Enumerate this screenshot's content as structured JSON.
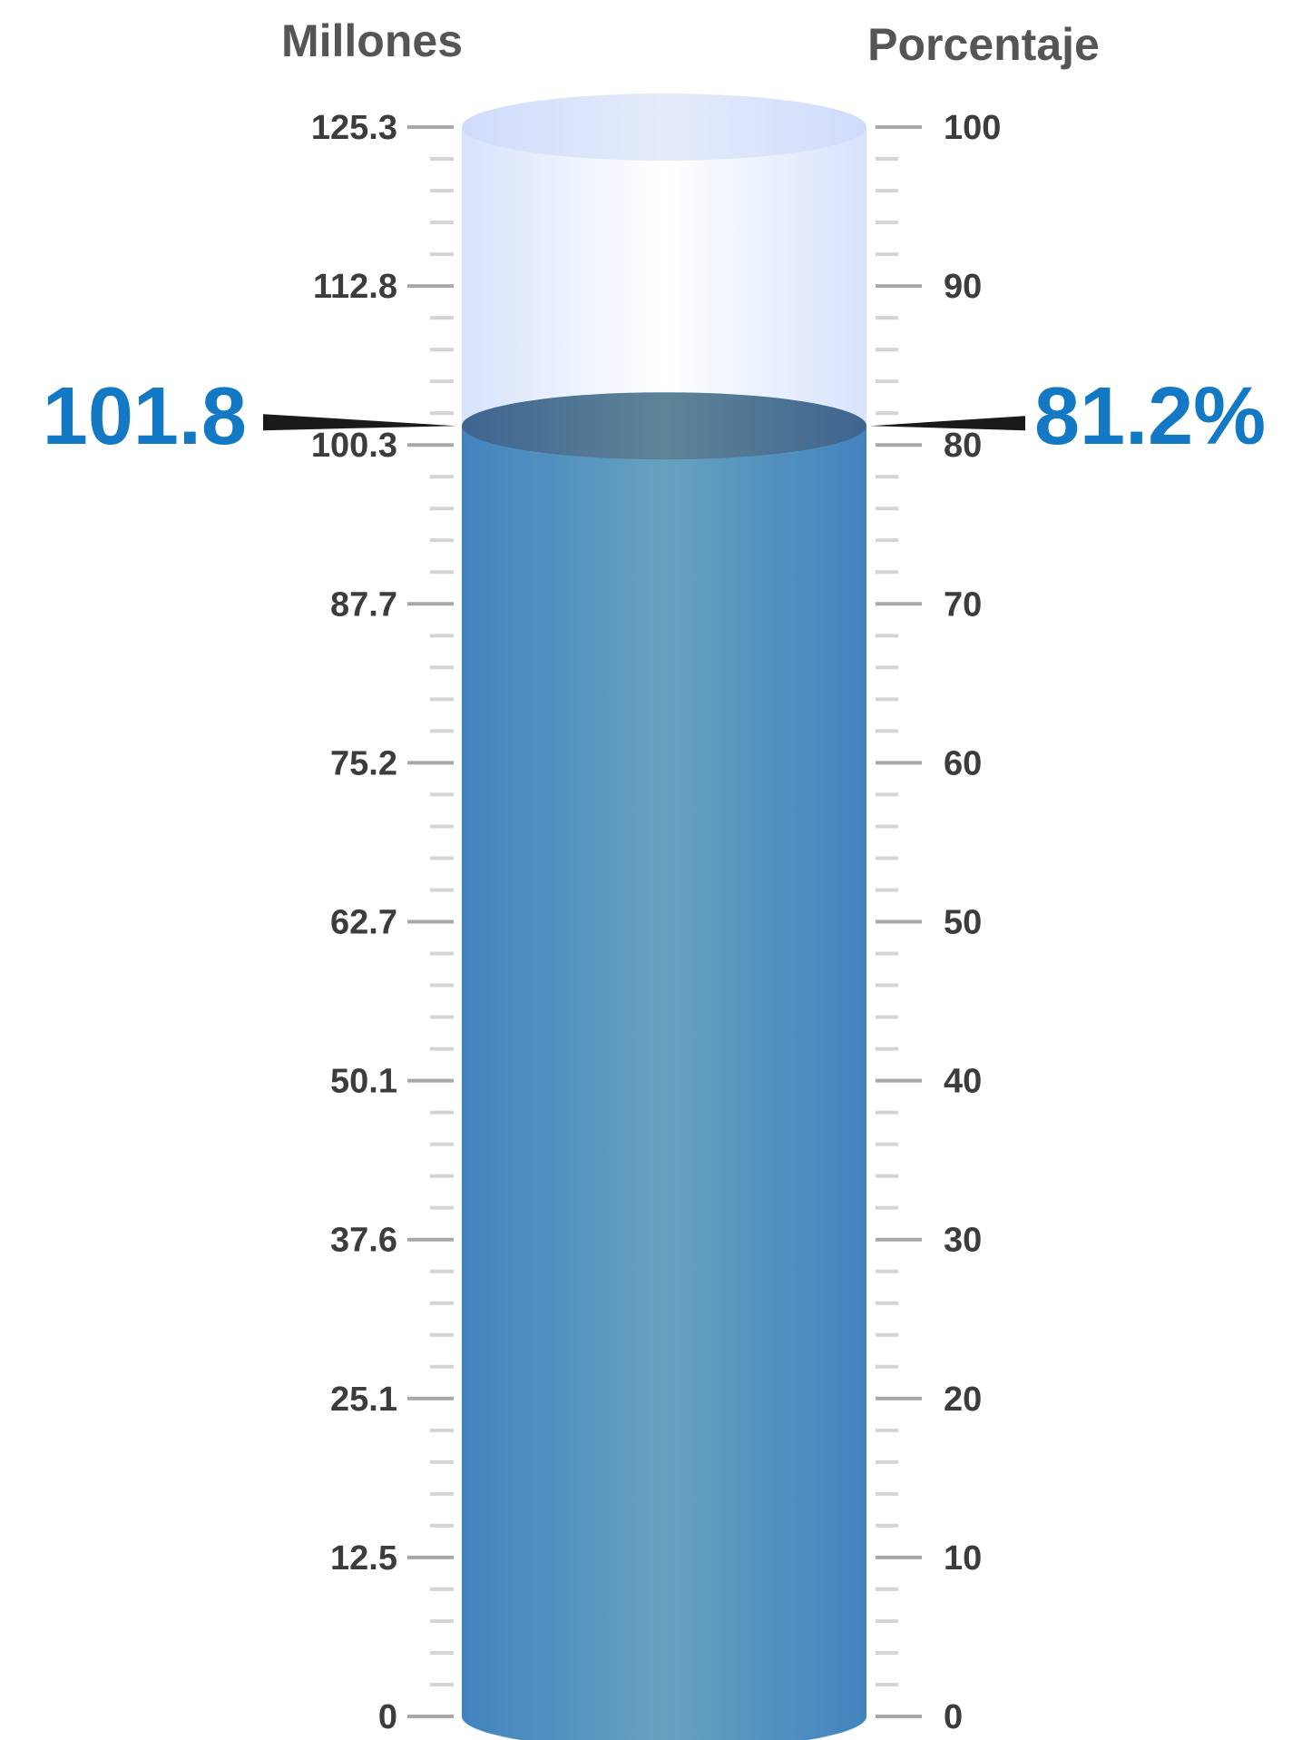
{
  "chart_data": {
    "type": "cylinder-gauge",
    "left_axis": {
      "title": "Millones",
      "ticks": [
        "0",
        "12.5",
        "25.1",
        "37.6",
        "50.1",
        "62.7",
        "75.2",
        "87.7",
        "100.3",
        "112.8",
        "125.3"
      ],
      "range": [
        0,
        125.3
      ]
    },
    "right_axis": {
      "title": "Porcentaje",
      "ticks": [
        "0",
        "10",
        "20",
        "30",
        "40",
        "50",
        "60",
        "70",
        "80",
        "90",
        "100"
      ],
      "range": [
        0,
        100
      ]
    },
    "value": 101.8,
    "value_label": "101.8",
    "percent": 81.2,
    "percent_label": "81.2%",
    "colors": {
      "fill": "#4a8cc4",
      "fill_highlight": "#66a3c0",
      "empty": "#dbe6fb",
      "value_text": "#1479c4",
      "pointer": "#1a1a1a",
      "major_tick": "#a8a8a8",
      "minor_tick": "#d4d4d4"
    }
  }
}
